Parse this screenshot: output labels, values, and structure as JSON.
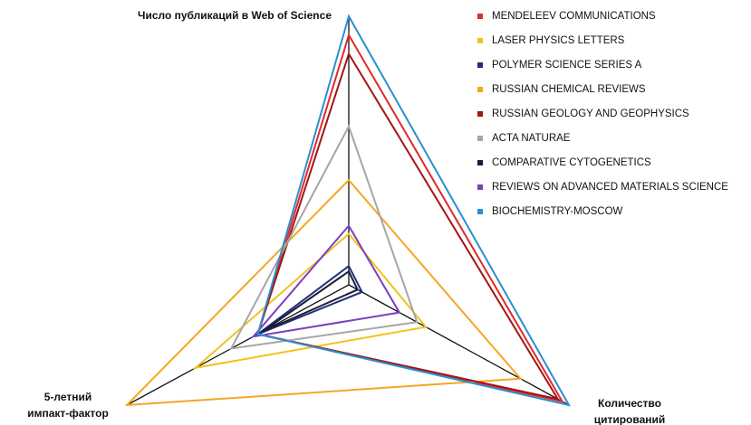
{
  "chart_data": {
    "type": "radar",
    "axes": [
      [
        "Число публикаций в Web of Science"
      ],
      [
        "5-летний",
        "импакт-фактор"
      ],
      [
        "Количество",
        "цитирований"
      ]
    ],
    "rlim": [
      0,
      100
    ],
    "series": [
      {
        "name": "MENDELEEV COMMUNICATIONS",
        "color": "#e02a2a",
        "values": [
          93,
          41,
          97
        ]
      },
      {
        "name": "LASER PHYSICS LETTERS",
        "color": "#f2c21a",
        "values": [
          19,
          69,
          35
        ]
      },
      {
        "name": "POLYMER SCIENCE SERIES A",
        "color": "#1f2f7a",
        "values": [
          7,
          41,
          6
        ]
      },
      {
        "name": "RUSSIAN CHEMICAL REVIEWS",
        "color": "#f5a623",
        "values": [
          39,
          100,
          78
        ]
      },
      {
        "name": "RUSSIAN GEOLOGY AND GEOPHYSICS",
        "color": "#a31515",
        "values": [
          86,
          41,
          95
        ]
      },
      {
        "name": "ACTA NATURAE",
        "color": "#a6a6a6",
        "values": [
          59,
          53,
          31
        ]
      },
      {
        "name": "COMPARATIVE CYTOGENETICS",
        "color": "#1c1c3c",
        "values": [
          5,
          39,
          4
        ]
      },
      {
        "name": "REVIEWS ON ADVANCED MATERIALS SCIENCE",
        "color": "#7a3fc0",
        "values": [
          22,
          43,
          23
        ]
      },
      {
        "name": "BIOCHEMISTRY-MOSCOW",
        "color": "#2a8fd0",
        "values": [
          100,
          41,
          100
        ]
      }
    ]
  }
}
